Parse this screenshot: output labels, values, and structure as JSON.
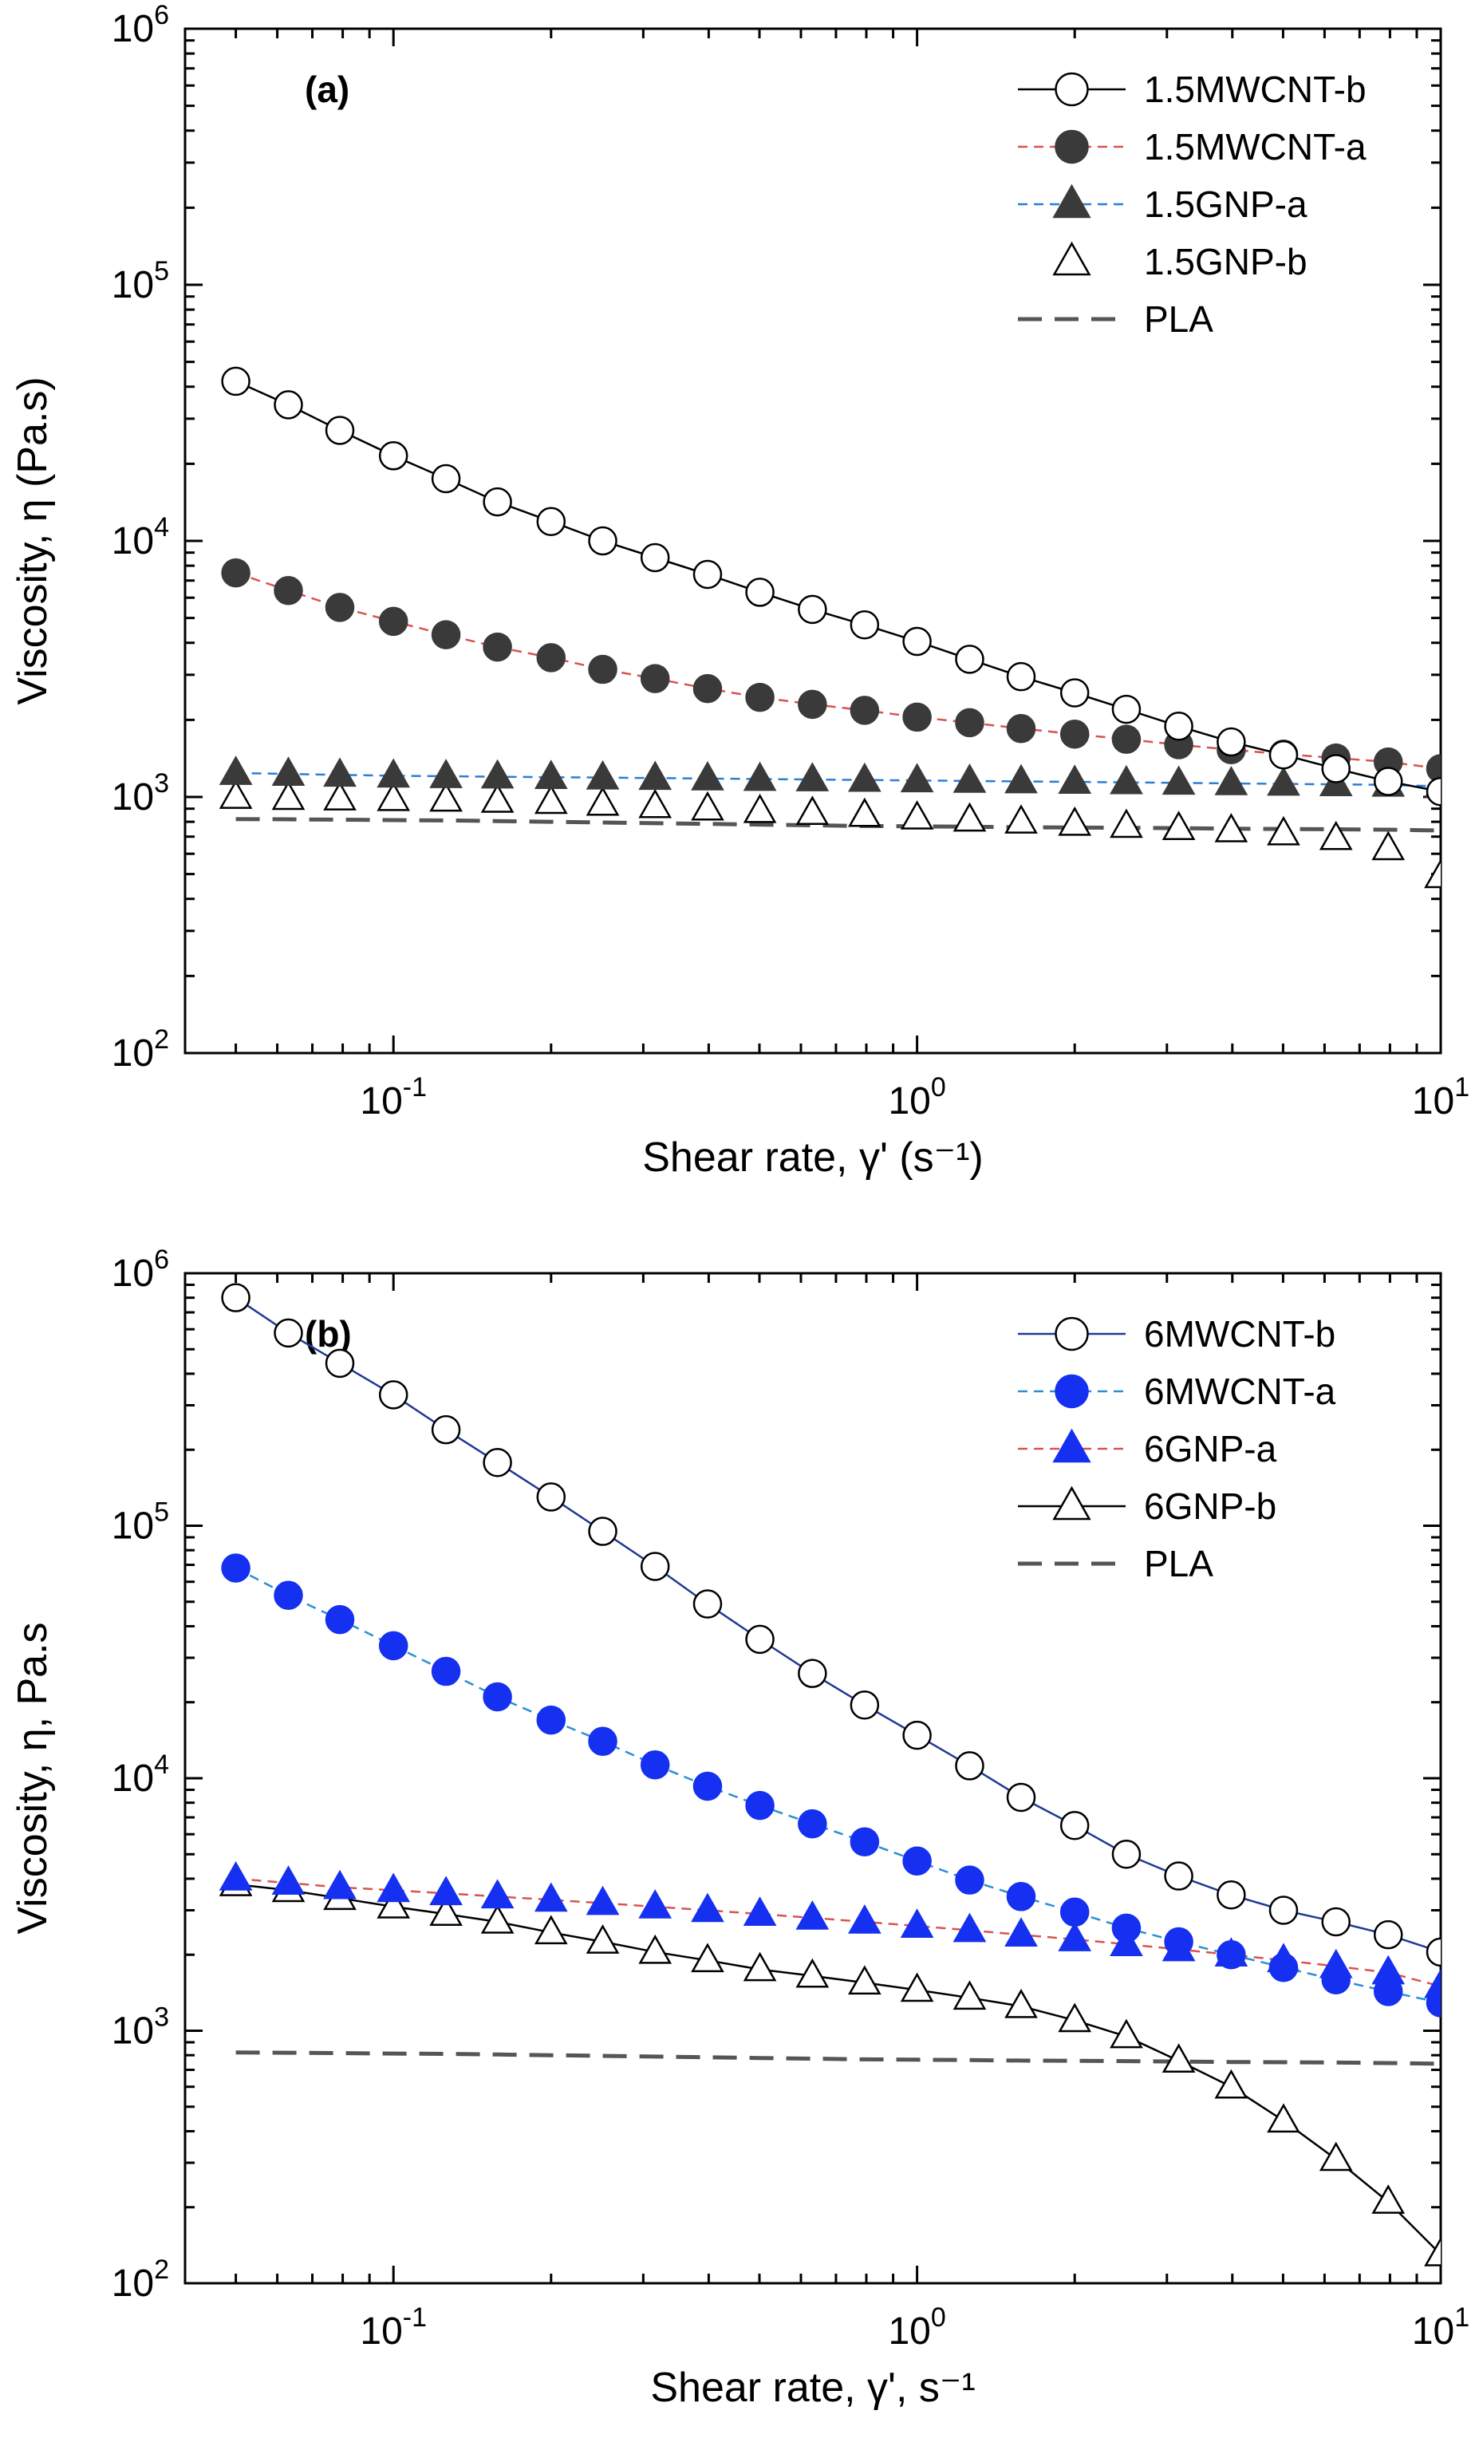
{
  "chart_data": [
    {
      "type": "line",
      "panel_label": "(a)",
      "xlabel": "Shear rate, γ' (s⁻¹)",
      "ylabel": "Viscosity, η (Pa.s)",
      "x_scale": "log",
      "y_scale": "log",
      "xlim": [
        0.04,
        10
      ],
      "ylim": [
        100,
        1000000
      ],
      "x_ticks": [
        {
          "value": 0.1,
          "base": "10",
          "exp": "-1"
        },
        {
          "value": 1,
          "base": "10",
          "exp": "0"
        },
        {
          "value": 10,
          "base": "10",
          "exp": "1"
        }
      ],
      "y_ticks": [
        {
          "value": 100,
          "base": "10",
          "exp": "2"
        },
        {
          "value": 1000,
          "base": "10",
          "exp": "3"
        },
        {
          "value": 10000,
          "base": "10",
          "exp": "4"
        },
        {
          "value": 100000,
          "base": "10",
          "exp": "5"
        },
        {
          "value": 1000000,
          "base": "10",
          "exp": "6"
        }
      ],
      "grid": false,
      "legend_position": "top-right",
      "x": [
        0.05,
        0.063,
        0.079,
        0.1,
        0.126,
        0.158,
        0.2,
        0.251,
        0.316,
        0.398,
        0.501,
        0.631,
        0.794,
        1,
        1.26,
        1.58,
        2,
        2.51,
        3.16,
        3.98,
        5.01,
        6.31,
        7.94,
        10
      ],
      "series": [
        {
          "name": "1.5MWCNT-b",
          "marker": "circle-open",
          "line": "solid",
          "color": "#000000",
          "values": [
            42000,
            34000,
            27000,
            21500,
            17500,
            14200,
            11900,
            10000,
            8600,
            7400,
            6300,
            5400,
            4700,
            4050,
            3450,
            2950,
            2550,
            2200,
            1890,
            1640,
            1460,
            1290,
            1150,
            1050
          ]
        },
        {
          "name": "1.5MWCNT-a",
          "marker": "circle-filled",
          "line": "dashed",
          "color": "#d9534f",
          "markerColor": "#3a3a3a",
          "values": [
            7500,
            6400,
            5500,
            4850,
            4300,
            3850,
            3500,
            3150,
            2900,
            2650,
            2450,
            2300,
            2180,
            2050,
            1950,
            1850,
            1760,
            1680,
            1600,
            1530,
            1470,
            1420,
            1370,
            1290
          ]
        },
        {
          "name": "1.5GNP-a",
          "marker": "triangle-filled",
          "line": "dashed",
          "color": "#2a7fd4",
          "markerColor": "#3a3a3a",
          "values": [
            1240,
            1230,
            1220,
            1210,
            1205,
            1200,
            1195,
            1190,
            1185,
            1180,
            1175,
            1170,
            1165,
            1160,
            1155,
            1150,
            1145,
            1140,
            1135,
            1130,
            1125,
            1120,
            1115,
            1100
          ]
        },
        {
          "name": "1.5GNP-b",
          "marker": "triangle-open",
          "line": "none",
          "color": "#000000",
          "values": [
            1000,
            990,
            985,
            980,
            975,
            965,
            955,
            940,
            920,
            900,
            880,
            865,
            850,
            830,
            815,
            800,
            785,
            770,
            755,
            740,
            720,
            690,
            630,
            490
          ]
        },
        {
          "name": "PLA",
          "marker": "none",
          "line": "dashed-thick",
          "color": "#555555",
          "values": [
            820,
            818,
            815,
            812,
            810,
            805,
            800,
            795,
            790,
            785,
            780,
            775,
            770,
            768,
            765,
            762,
            760,
            758,
            755,
            752,
            750,
            748,
            745,
            740
          ]
        }
      ]
    },
    {
      "type": "line",
      "panel_label": "(b)",
      "xlabel": "Shear rate, γ', s⁻¹",
      "ylabel": "Viscosity, η, Pa.s",
      "x_scale": "log",
      "y_scale": "log",
      "xlim": [
        0.04,
        10
      ],
      "ylim": [
        100,
        1000000
      ],
      "x_ticks": [
        {
          "value": 0.1,
          "base": "10",
          "exp": "-1"
        },
        {
          "value": 1,
          "base": "10",
          "exp": "0"
        },
        {
          "value": 10,
          "base": "10",
          "exp": "1"
        }
      ],
      "y_ticks": [
        {
          "value": 100,
          "base": "10",
          "exp": "2"
        },
        {
          "value": 1000,
          "base": "10",
          "exp": "3"
        },
        {
          "value": 10000,
          "base": "10",
          "exp": "4"
        },
        {
          "value": 100000,
          "base": "10",
          "exp": "5"
        },
        {
          "value": 1000000,
          "base": "10",
          "exp": "6"
        }
      ],
      "grid": false,
      "legend_position": "top-right",
      "x": [
        0.05,
        0.063,
        0.079,
        0.1,
        0.126,
        0.158,
        0.2,
        0.251,
        0.316,
        0.398,
        0.501,
        0.631,
        0.794,
        1,
        1.26,
        1.58,
        2,
        2.51,
        3.16,
        3.98,
        5.01,
        6.31,
        7.94,
        10
      ],
      "series": [
        {
          "name": "6MWCNT-b",
          "marker": "circle-open",
          "line": "solid",
          "color": "#1f3a93",
          "values": [
            800000,
            580000,
            440000,
            330000,
            240000,
            178000,
            130000,
            95000,
            69000,
            49000,
            35500,
            26000,
            19500,
            14800,
            11200,
            8400,
            6500,
            5000,
            4100,
            3450,
            3000,
            2700,
            2400,
            2050
          ]
        },
        {
          "name": "6MWCNT-a",
          "marker": "circle-filled",
          "line": "dashed",
          "color": "#2a8fd4",
          "markerColor": "#1530f0",
          "values": [
            68000,
            53000,
            42500,
            33500,
            26500,
            21000,
            17000,
            14000,
            11300,
            9300,
            7800,
            6600,
            5600,
            4700,
            3950,
            3400,
            2950,
            2550,
            2250,
            2000,
            1780,
            1590,
            1430,
            1290
          ]
        },
        {
          "name": "6GNP-a",
          "marker": "triangle-filled",
          "line": "dashed",
          "color": "#d9534f",
          "markerColor": "#1530f0",
          "values": [
            4000,
            3850,
            3700,
            3600,
            3500,
            3400,
            3300,
            3200,
            3100,
            3000,
            2900,
            2800,
            2700,
            2600,
            2500,
            2400,
            2300,
            2200,
            2100,
            2000,
            1900,
            1800,
            1700,
            1500
          ]
        },
        {
          "name": "6GNP-b",
          "marker": "triangle-open",
          "line": "solid",
          "color": "#000000",
          "values": [
            3800,
            3600,
            3350,
            3100,
            2900,
            2700,
            2450,
            2250,
            2050,
            1900,
            1750,
            1650,
            1550,
            1450,
            1350,
            1250,
            1100,
            950,
            760,
            600,
            440,
            310,
            210,
            130
          ]
        },
        {
          "name": "PLA",
          "marker": "none",
          "line": "dashed-thick",
          "color": "#555555",
          "values": [
            820,
            818,
            815,
            812,
            810,
            805,
            800,
            795,
            790,
            785,
            780,
            775,
            770,
            768,
            765,
            762,
            760,
            758,
            755,
            752,
            750,
            748,
            745,
            740
          ]
        }
      ]
    }
  ]
}
